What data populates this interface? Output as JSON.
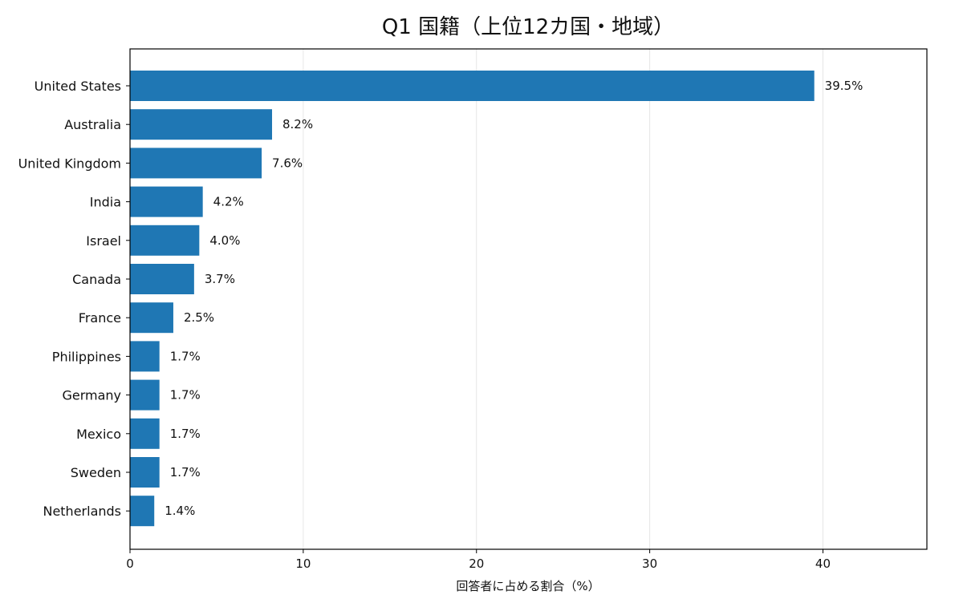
{
  "chart_data": {
    "type": "bar",
    "orientation": "horizontal",
    "title": "Q1 国籍（上位12カ国・地域）",
    "xlabel": "回答者に占める割合（%）",
    "ylabel": "",
    "xlim": [
      0,
      46
    ],
    "xticks": [
      0,
      10,
      20,
      30,
      40
    ],
    "grid": "vertical",
    "bar_color": "#1f77b4",
    "categories": [
      "United States",
      "Australia",
      "United Kingdom",
      "India",
      "Israel",
      "Canada",
      "France",
      "Philippines",
      "Germany",
      "Mexico",
      "Sweden",
      "Netherlands"
    ],
    "values": [
      39.5,
      8.2,
      7.6,
      4.2,
      4.0,
      3.7,
      2.5,
      1.7,
      1.7,
      1.7,
      1.7,
      1.4
    ],
    "data_labels": [
      "39.5%",
      "8.2%",
      "7.6%",
      "4.2%",
      "4.0%",
      "3.7%",
      "2.5%",
      "1.7%",
      "1.7%",
      "1.7%",
      "1.7%",
      "1.4%"
    ]
  }
}
